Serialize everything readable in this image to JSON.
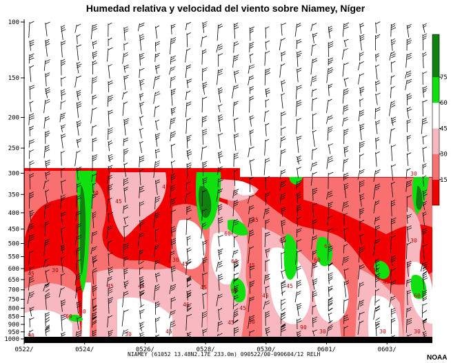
{
  "chart_data": {
    "type": "heatmap",
    "title": "Humedad relativa y velocidad del viento sobre Niamey, Níger",
    "footer_info": "NIAMEY (61052 13.48N2.17E 233.0m) 090522/00-090604/12 RELH",
    "credit": "NOAA",
    "y_axis": {
      "quantity": "pressure (hPa)",
      "scale": "log",
      "reversed": true,
      "range": [
        1000,
        100
      ],
      "ticks": [
        100,
        150,
        200,
        250,
        300,
        350,
        400,
        450,
        500,
        550,
        600,
        650,
        700,
        750,
        800,
        850,
        900,
        950,
        1000
      ],
      "tick_labels": [
        "100",
        "150",
        "200",
        "250",
        "300",
        "350",
        "400",
        "450",
        "500",
        "550",
        "600",
        "650",
        "700",
        "750",
        "800",
        "850",
        "900",
        "950",
        "1000"
      ]
    },
    "x_axis": {
      "range": [
        "2009-05-22 00Z",
        "2009-06-04 12Z"
      ],
      "tick_labels": [
        "0522/",
        "0524/",
        "0526/",
        "0528/",
        "0530/",
        "0601/",
        "0603/"
      ]
    },
    "colorbar": {
      "ticks": [
        15,
        30,
        45,
        60,
        75
      ],
      "colors": [
        {
          "range": [
            0,
            15
          ],
          "color": "#f00000"
        },
        {
          "range": [
            15,
            30
          ],
          "color": "#f87070"
        },
        {
          "range": [
            30,
            45
          ],
          "color": "#f8b8c0"
        },
        {
          "range": [
            45,
            60
          ],
          "color": "#ffffff"
        },
        {
          "range": [
            60,
            75
          ],
          "color": "#10e010"
        },
        {
          "range": [
            75,
            100
          ],
          "color": "#108010"
        }
      ]
    },
    "data_top_hPa": 300,
    "contour_labels": [
      "45",
      "30",
      "60",
      "90",
      "15",
      "75"
    ],
    "wind_barbs": true,
    "grid": false,
    "legend": "right"
  }
}
